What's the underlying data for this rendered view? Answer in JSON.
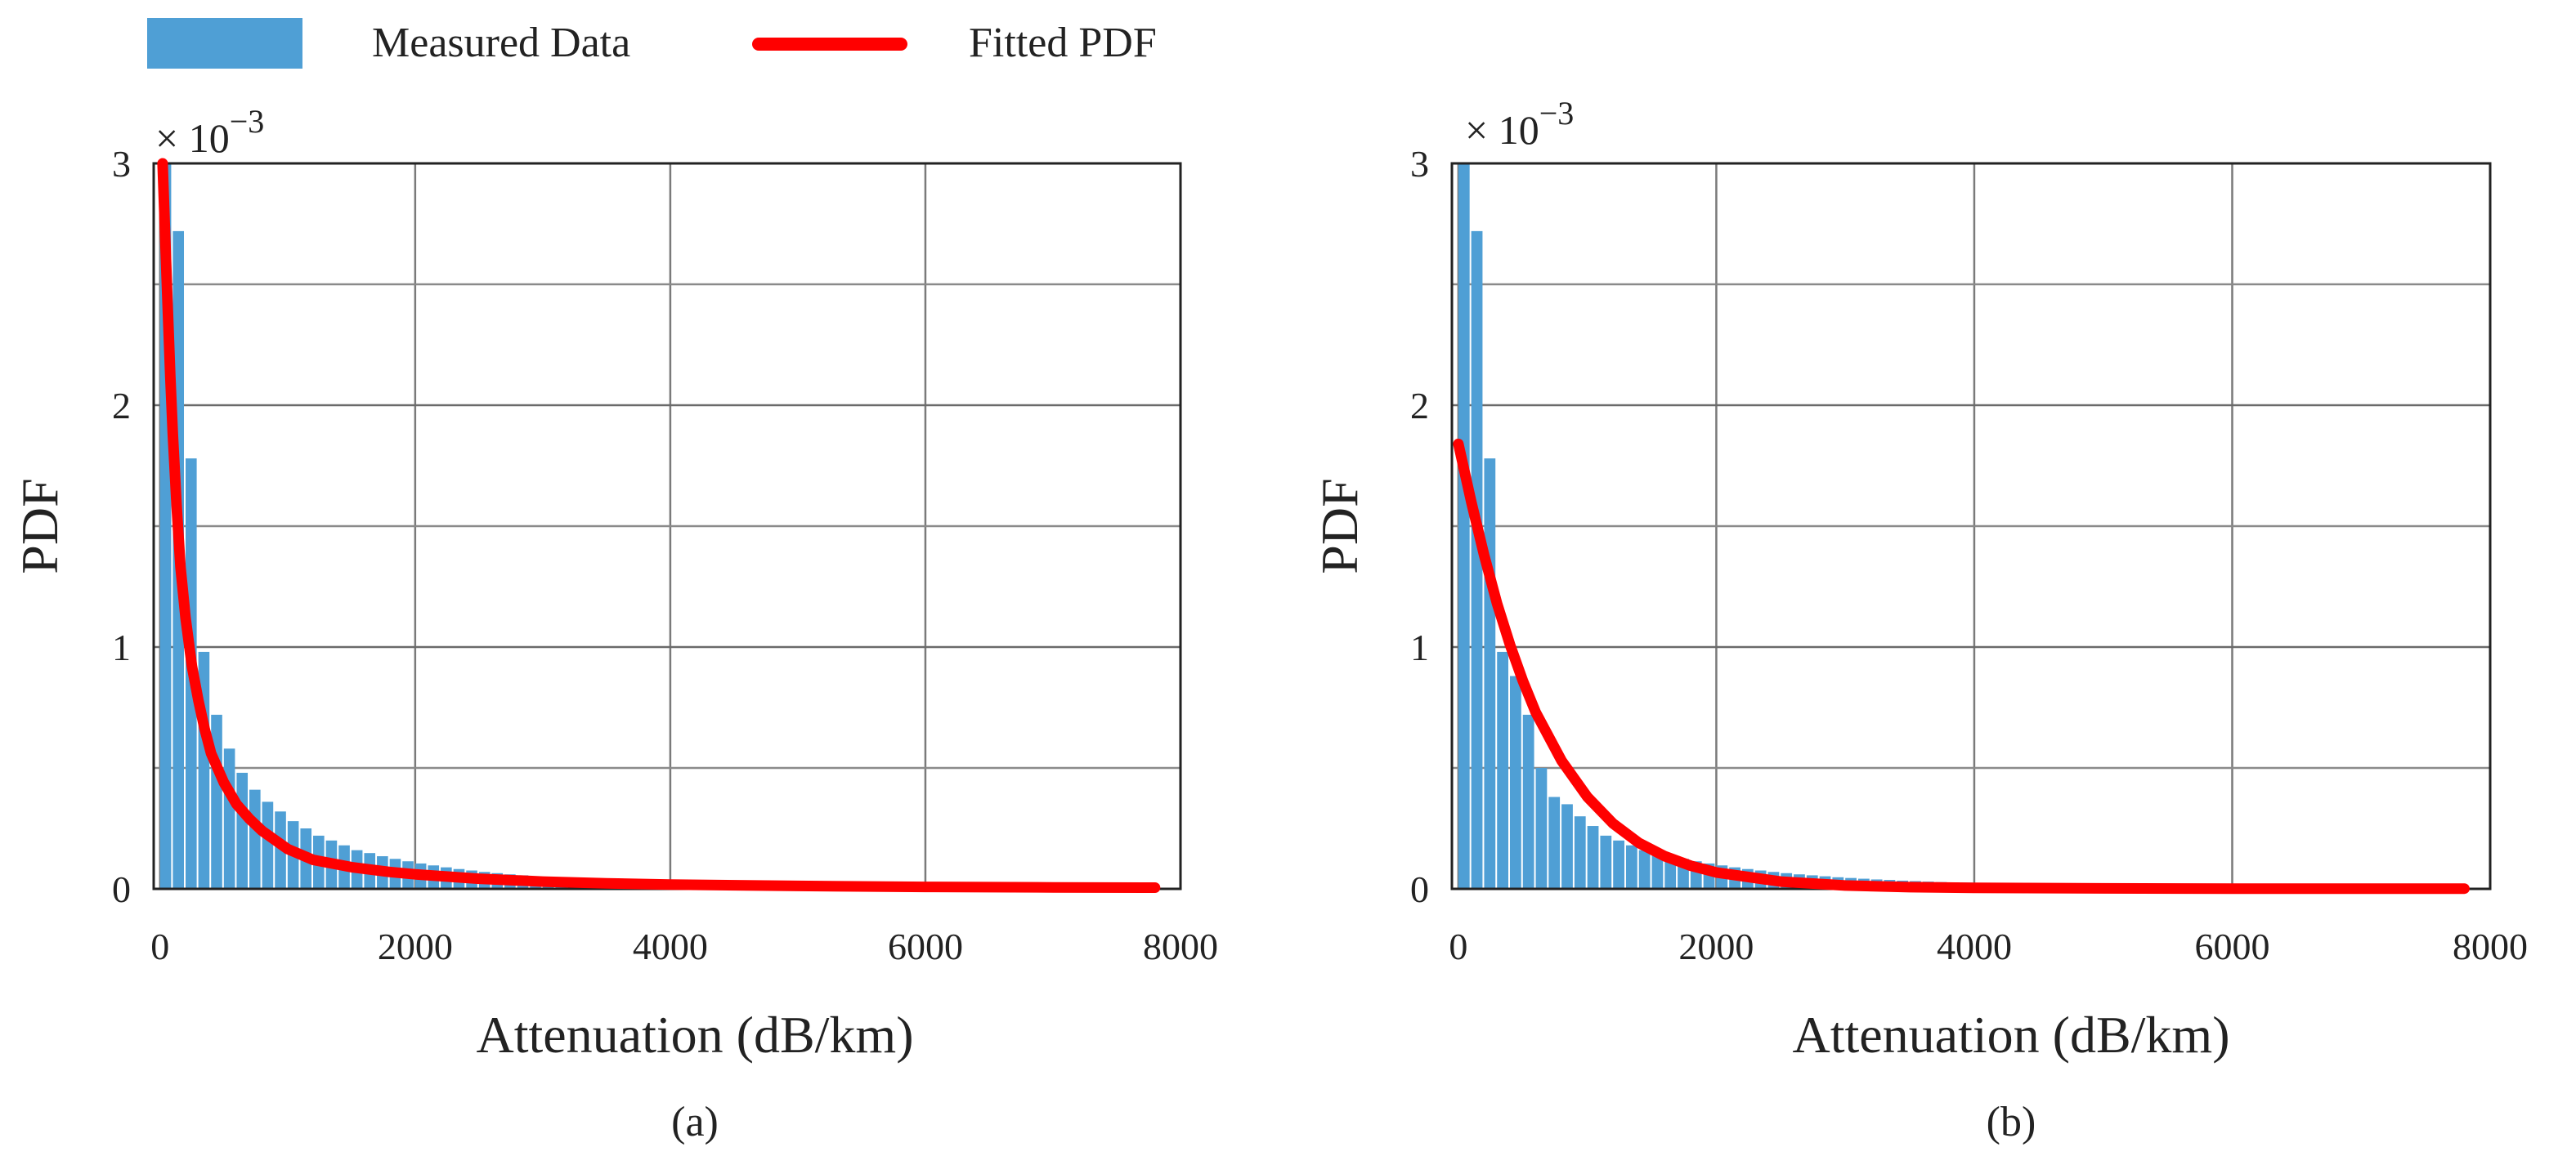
{
  "legend": {
    "measured_label": "Measured Data",
    "fitted_label": "Fitted PDF",
    "measured_color": "#4f9fd5",
    "fitted_color": "#ff0000"
  },
  "chart_data": [
    {
      "type": "bar",
      "panel": "(a)",
      "caption": "(a)",
      "xlabel": "Attenuation (dB/km)",
      "ylabel": "PDF",
      "y_multiplier": "× 10",
      "y_exponent": "−3",
      "xlim": [
        -50,
        8000
      ],
      "ylim": [
        0,
        0.003
      ],
      "x_ticks": [
        0,
        2000,
        4000,
        6000,
        8000
      ],
      "x_tick_labels": [
        "0",
        "2000",
        "4000",
        "6000",
        "8000"
      ],
      "y_ticks": [
        0,
        0.001,
        0.002,
        0.003
      ],
      "y_tick_labels": [
        "0",
        "1",
        "2",
        "3"
      ],
      "bin_width": 100,
      "bin_start": 0,
      "hist_values": [
        0.003,
        0.00272,
        0.00178,
        0.00098,
        0.00072,
        0.00058,
        0.00048,
        0.00041,
        0.00036,
        0.00032,
        0.00028,
        0.00025,
        0.00022,
        0.0002,
        0.00018,
        0.00016,
        0.000148,
        0.000135,
        0.000124,
        0.000114,
        0.000105,
        9.7e-05,
        8.9e-05,
        8.2e-05,
        7.6e-05,
        7e-05,
        6.5e-05,
        6e-05,
        5.6e-05,
        5.2e-05,
        4.8e-05,
        4.5e-05,
        4.2e-05,
        3.9e-05,
        3.7e-05,
        3.4e-05,
        3.2e-05,
        3e-05,
        2.8e-05,
        2.7e-05
      ],
      "fitted_curve": {
        "name": "Fitted PDF",
        "x": [
          20,
          40,
          60,
          80,
          100,
          130,
          160,
          200,
          250,
          300,
          350,
          400,
          500,
          600,
          700,
          800,
          1000,
          1200,
          1500,
          1800,
          2000,
          2500,
          3000,
          3500,
          4000,
          5000,
          6000,
          7000,
          7800
        ],
        "y": [
          0.003,
          0.0027,
          0.0024,
          0.00212,
          0.00188,
          0.00158,
          0.00133,
          0.00112,
          0.00092,
          0.00078,
          0.00066,
          0.00056,
          0.00044,
          0.00035,
          0.00029,
          0.00024,
          0.000165,
          0.00012,
          9e-05,
          7e-05,
          6e-05,
          4.2e-05,
          3e-05,
          2.3e-05,
          1.8e-05,
          1.2e-05,
          8e-06,
          6e-06,
          5e-06
        ]
      }
    },
    {
      "type": "bar",
      "panel": "(b)",
      "caption": "(b)",
      "xlabel": "Attenuation (dB/km)",
      "ylabel": "PDF",
      "y_multiplier": "× 10",
      "y_exponent": "−3",
      "xlim": [
        -50,
        8000
      ],
      "ylim": [
        0,
        0.003
      ],
      "x_ticks": [
        0,
        2000,
        4000,
        6000,
        8000
      ],
      "x_tick_labels": [
        "0",
        "2000",
        "4000",
        "6000",
        "8000"
      ],
      "y_ticks": [
        0,
        0.001,
        0.002,
        0.003
      ],
      "y_tick_labels": [
        "0",
        "1",
        "2",
        "3"
      ],
      "bin_width": 100,
      "bin_start": 0,
      "hist_values": [
        0.003,
        0.00272,
        0.00178,
        0.00098,
        0.00088,
        0.00072,
        0.0005,
        0.00038,
        0.00035,
        0.0003,
        0.00026,
        0.00022,
        0.0002,
        0.00018,
        0.00016,
        0.000148,
        0.000135,
        0.000124,
        0.000114,
        0.000105,
        9.7e-05,
        8.9e-05,
        8.2e-05,
        7.6e-05,
        7e-05,
        6.5e-05,
        6e-05,
        5.6e-05,
        5.2e-05,
        4.8e-05,
        4.5e-05,
        4.2e-05,
        3.9e-05,
        3.7e-05,
        3.4e-05,
        3.2e-05,
        3e-05,
        2.8e-05,
        2.7e-05,
        2.6e-05
      ],
      "fitted_curve": {
        "name": "Fitted PDF",
        "x": [
          0,
          100,
          200,
          300,
          400,
          500,
          600,
          800,
          1000,
          1200,
          1400,
          1600,
          1800,
          2000,
          2500,
          3000,
          3500,
          4000,
          5000,
          6000,
          7000,
          7800
        ],
        "y": [
          0.00184,
          0.0016,
          0.00138,
          0.00118,
          0.00101,
          0.00086,
          0.00073,
          0.00053,
          0.00038,
          0.00027,
          0.00019,
          0.000135,
          9.6e-05,
          6.8e-05,
          3e-05,
          1.4e-05,
          7e-06,
          4e-06,
          2e-06,
          1e-06,
          1e-06,
          1e-06
        ]
      }
    }
  ]
}
